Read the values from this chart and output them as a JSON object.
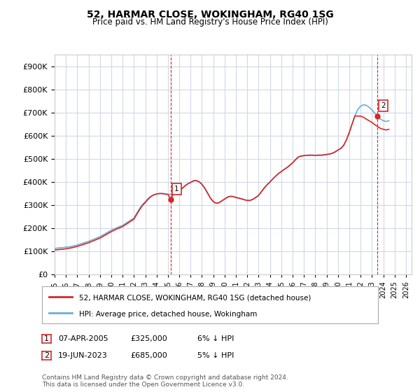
{
  "title": "52, HARMAR CLOSE, WOKINGHAM, RG40 1SG",
  "subtitle": "Price paid vs. HM Land Registry's House Price Index (HPI)",
  "ylabel_ticks": [
    "£0",
    "£100K",
    "£200K",
    "£300K",
    "£400K",
    "£500K",
    "£600K",
    "£700K",
    "£800K",
    "£900K"
  ],
  "ytick_values": [
    0,
    100000,
    200000,
    300000,
    400000,
    500000,
    600000,
    700000,
    800000,
    900000
  ],
  "ylim": [
    0,
    950000
  ],
  "x_start_year": 1995,
  "x_end_year": 2026,
  "xtick_years": [
    1995,
    1996,
    1997,
    1998,
    1999,
    2000,
    2001,
    2002,
    2003,
    2004,
    2005,
    2006,
    2007,
    2008,
    2009,
    2010,
    2011,
    2012,
    2013,
    2014,
    2015,
    2016,
    2017,
    2018,
    2019,
    2020,
    2021,
    2022,
    2023,
    2024,
    2025,
    2026
  ],
  "hpi_color": "#6baed6",
  "price_color": "#d62728",
  "dashed_line_color": "#d62728",
  "background_color": "#ffffff",
  "grid_color": "#d0d8e8",
  "sale1_x": 2005.27,
  "sale1_y": 325000,
  "sale1_label": "1",
  "sale2_x": 2023.47,
  "sale2_y": 685000,
  "sale2_label": "2",
  "legend_line1": "52, HARMAR CLOSE, WOKINGHAM, RG40 1SG (detached house)",
  "legend_line2": "HPI: Average price, detached house, Wokingham",
  "table_row1": [
    "1",
    "07-APR-2005",
    "£325,000",
    "6% ↓ HPI"
  ],
  "table_row2": [
    "2",
    "19-JUN-2023",
    "£685,000",
    "5% ↓ HPI"
  ],
  "footnote": "Contains HM Land Registry data © Crown copyright and database right 2024.\nThis data is licensed under the Open Government Licence v3.0.",
  "hpi_data_years": [
    1995.0,
    1995.25,
    1995.5,
    1995.75,
    1996.0,
    1996.25,
    1996.5,
    1996.75,
    1997.0,
    1997.25,
    1997.5,
    1997.75,
    1998.0,
    1998.25,
    1998.5,
    1998.75,
    1999.0,
    1999.25,
    1999.5,
    1999.75,
    2000.0,
    2000.25,
    2000.5,
    2000.75,
    2001.0,
    2001.25,
    2001.5,
    2001.75,
    2002.0,
    2002.25,
    2002.5,
    2002.75,
    2003.0,
    2003.25,
    2003.5,
    2003.75,
    2004.0,
    2004.25,
    2004.5,
    2004.75,
    2005.0,
    2005.25,
    2005.5,
    2005.75,
    2006.0,
    2006.25,
    2006.5,
    2006.75,
    2007.0,
    2007.25,
    2007.5,
    2007.75,
    2008.0,
    2008.25,
    2008.5,
    2008.75,
    2009.0,
    2009.25,
    2009.5,
    2009.75,
    2010.0,
    2010.25,
    2010.5,
    2010.75,
    2011.0,
    2011.25,
    2011.5,
    2011.75,
    2012.0,
    2012.25,
    2012.5,
    2012.75,
    2013.0,
    2013.25,
    2013.5,
    2013.75,
    2014.0,
    2014.25,
    2014.5,
    2014.75,
    2015.0,
    2015.25,
    2015.5,
    2015.75,
    2016.0,
    2016.25,
    2016.5,
    2016.75,
    2017.0,
    2017.25,
    2017.5,
    2017.75,
    2018.0,
    2018.25,
    2018.5,
    2018.75,
    2019.0,
    2019.25,
    2019.5,
    2019.75,
    2020.0,
    2020.25,
    2020.5,
    2020.75,
    2021.0,
    2021.25,
    2021.5,
    2021.75,
    2022.0,
    2022.25,
    2022.5,
    2022.75,
    2023.0,
    2023.25,
    2023.5,
    2023.75,
    2024.0,
    2024.25,
    2024.5
  ],
  "hpi_values": [
    112000,
    114000,
    115000,
    116000,
    118000,
    119000,
    121000,
    124000,
    127000,
    131000,
    135000,
    139000,
    143000,
    148000,
    153000,
    158000,
    163000,
    170000,
    177000,
    184000,
    191000,
    197000,
    202000,
    207000,
    212000,
    220000,
    228000,
    236000,
    244000,
    265000,
    285000,
    302000,
    315000,
    328000,
    338000,
    344000,
    348000,
    350000,
    350000,
    348000,
    346000,
    347000,
    349000,
    354000,
    362000,
    372000,
    383000,
    392000,
    398000,
    405000,
    406000,
    401000,
    390000,
    373000,
    352000,
    330000,
    315000,
    308000,
    310000,
    318000,
    326000,
    334000,
    338000,
    337000,
    333000,
    330000,
    327000,
    323000,
    320000,
    320000,
    325000,
    333000,
    342000,
    358000,
    374000,
    388000,
    400000,
    413000,
    425000,
    436000,
    445000,
    454000,
    462000,
    472000,
    483000,
    496000,
    508000,
    512000,
    514000,
    515000,
    516000,
    516000,
    515000,
    516000,
    516000,
    517000,
    519000,
    521000,
    524000,
    530000,
    538000,
    545000,
    558000,
    582000,
    614000,
    651000,
    686000,
    714000,
    728000,
    734000,
    732000,
    724000,
    712000,
    698000,
    685000,
    672000,
    665000,
    662000,
    665000
  ],
  "price_data_years": [
    1995.0,
    1995.25,
    1995.5,
    1995.75,
    1996.0,
    1996.25,
    1996.5,
    1996.75,
    1997.0,
    1997.25,
    1997.5,
    1997.75,
    1998.0,
    1998.25,
    1998.5,
    1998.75,
    1999.0,
    1999.25,
    1999.5,
    1999.75,
    2000.0,
    2000.25,
    2000.5,
    2000.75,
    2001.0,
    2001.25,
    2001.5,
    2001.75,
    2002.0,
    2002.25,
    2002.5,
    2002.75,
    2003.0,
    2003.25,
    2003.5,
    2003.75,
    2004.0,
    2004.25,
    2004.5,
    2004.75,
    2005.0,
    2005.25,
    2005.5,
    2005.75,
    2006.0,
    2006.25,
    2006.5,
    2006.75,
    2007.0,
    2007.25,
    2007.5,
    2007.75,
    2008.0,
    2008.25,
    2008.5,
    2008.75,
    2009.0,
    2009.25,
    2009.5,
    2009.75,
    2010.0,
    2010.25,
    2010.5,
    2010.75,
    2011.0,
    2011.25,
    2011.5,
    2011.75,
    2012.0,
    2012.25,
    2012.5,
    2012.75,
    2013.0,
    2013.25,
    2013.5,
    2013.75,
    2014.0,
    2014.25,
    2014.5,
    2014.75,
    2015.0,
    2015.25,
    2015.5,
    2015.75,
    2016.0,
    2016.25,
    2016.5,
    2016.75,
    2017.0,
    2017.25,
    2017.5,
    2017.75,
    2018.0,
    2018.25,
    2018.5,
    2018.75,
    2019.0,
    2019.25,
    2019.5,
    2019.75,
    2020.0,
    2020.25,
    2020.5,
    2020.75,
    2021.0,
    2021.25,
    2021.5,
    2021.75,
    2022.0,
    2022.25,
    2022.5,
    2022.75,
    2023.0,
    2023.25,
    2023.5,
    2023.75,
    2024.0,
    2024.25,
    2024.5
  ],
  "price_values": [
    105000,
    107000,
    108000,
    109000,
    111000,
    113000,
    115000,
    118000,
    121000,
    125000,
    129000,
    133000,
    137000,
    142000,
    147000,
    152000,
    157000,
    164000,
    171000,
    178000,
    185000,
    191000,
    197000,
    202000,
    207000,
    215000,
    223000,
    231000,
    239000,
    260000,
    280000,
    298000,
    311000,
    325000,
    337000,
    344000,
    348000,
    350000,
    350000,
    348000,
    346000,
    325000,
    349000,
    354000,
    362000,
    372000,
    383000,
    392000,
    398000,
    405000,
    406000,
    401000,
    390000,
    373000,
    352000,
    330000,
    315000,
    308000,
    310000,
    318000,
    326000,
    334000,
    338000,
    337000,
    333000,
    330000,
    327000,
    323000,
    320000,
    320000,
    325000,
    333000,
    342000,
    358000,
    374000,
    388000,
    400000,
    413000,
    425000,
    436000,
    445000,
    454000,
    462000,
    472000,
    483000,
    496000,
    508000,
    512000,
    514000,
    515000,
    516000,
    516000,
    515000,
    516000,
    516000,
    517000,
    519000,
    521000,
    524000,
    530000,
    538000,
    545000,
    558000,
    582000,
    614000,
    651000,
    686000,
    685000,
    685000,
    680000,
    672000,
    665000,
    658000,
    648000,
    640000,
    632000,
    628000,
    625000,
    628000
  ]
}
